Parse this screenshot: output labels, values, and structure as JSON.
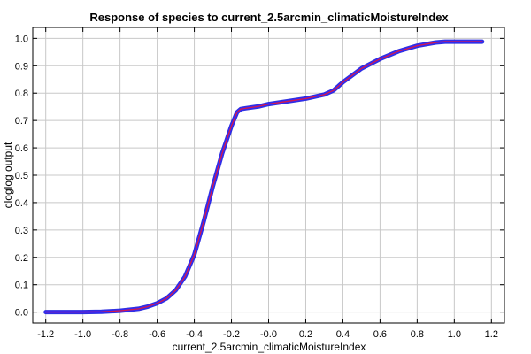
{
  "chart_data": {
    "type": "line",
    "title": "Response of species to current_2.5arcmin_climaticMoistureIndex",
    "xlabel": "current_2.5arcmin_climaticMoistureIndex",
    "ylabel": "cloglog output",
    "xlim": [
      -1.27,
      1.27
    ],
    "ylim": [
      -0.04,
      1.04
    ],
    "grid": true,
    "legend": "none",
    "x_ticks": [
      -1.2,
      -1.0,
      -0.8,
      -0.6,
      -0.4,
      -0.2,
      0.0,
      0.2,
      0.4,
      0.6,
      0.8,
      1.0,
      1.2
    ],
    "x_tick_labels": [
      "-1.2",
      "-1.0",
      "-0.8",
      "-0.6",
      "-0.4",
      "-0.2",
      "-0.0",
      "0.2",
      "0.4",
      "0.6",
      "0.8",
      "1.0",
      "1.2"
    ],
    "y_ticks": [
      0.0,
      0.1,
      0.2,
      0.3,
      0.4,
      0.5,
      0.6,
      0.7,
      0.8,
      0.9,
      1.0
    ],
    "y_tick_labels": [
      "0.0",
      "0.1",
      "0.2",
      "0.3",
      "0.4",
      "0.5",
      "0.6",
      "0.7",
      "0.8",
      "0.9",
      "1.0"
    ],
    "series": [
      {
        "color": "#2b2bff",
        "band_color": "#1a1adc",
        "x": [
          -1.2,
          -1.1,
          -1.0,
          -0.9,
          -0.8,
          -0.7,
          -0.65,
          -0.6,
          -0.55,
          -0.5,
          -0.45,
          -0.4,
          -0.35,
          -0.3,
          -0.25,
          -0.2,
          -0.17,
          -0.15,
          -0.12,
          -0.05,
          0.0,
          0.1,
          0.2,
          0.3,
          0.35,
          0.4,
          0.5,
          0.6,
          0.7,
          0.8,
          0.9,
          0.95,
          1.0,
          1.1,
          1.15
        ],
        "y": [
          0.0,
          0.0,
          0.0,
          0.001,
          0.005,
          0.012,
          0.02,
          0.032,
          0.05,
          0.08,
          0.13,
          0.21,
          0.33,
          0.46,
          0.58,
          0.68,
          0.73,
          0.742,
          0.745,
          0.752,
          0.76,
          0.77,
          0.78,
          0.795,
          0.81,
          0.84,
          0.89,
          0.925,
          0.953,
          0.973,
          0.985,
          0.988,
          0.988,
          0.988,
          0.988
        ]
      },
      {
        "color": "#d01a50",
        "x": [
          -1.2,
          -1.1,
          -1.0,
          -0.9,
          -0.8,
          -0.7,
          -0.65,
          -0.6,
          -0.55,
          -0.5,
          -0.45,
          -0.4,
          -0.35,
          -0.3,
          -0.25,
          -0.2,
          -0.17,
          -0.15,
          -0.12,
          -0.05,
          0.0,
          0.1,
          0.2,
          0.3,
          0.35,
          0.4,
          0.5,
          0.6,
          0.7,
          0.8,
          0.9,
          0.95,
          1.0,
          1.1,
          1.15
        ],
        "y": [
          0.0,
          0.0,
          0.0,
          0.001,
          0.005,
          0.012,
          0.02,
          0.032,
          0.05,
          0.08,
          0.13,
          0.21,
          0.33,
          0.46,
          0.58,
          0.68,
          0.73,
          0.742,
          0.745,
          0.752,
          0.76,
          0.77,
          0.78,
          0.795,
          0.81,
          0.84,
          0.89,
          0.925,
          0.953,
          0.973,
          0.985,
          0.988,
          0.988,
          0.988,
          0.988
        ]
      }
    ]
  }
}
